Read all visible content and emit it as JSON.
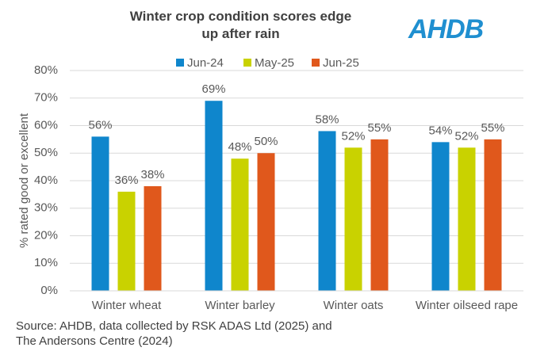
{
  "chart_data": {
    "type": "bar",
    "title": "Winter crop condition scores edge up after rain",
    "logo": "AHDB",
    "y_label": "% rated good or excellent",
    "source": "Source: AHDB, data collected by RSK ADAS Ltd (2025) and The Andersons Centre (2024)",
    "categories": [
      "Winter wheat",
      "Winter barley",
      "Winter oats",
      "Winter oilseed rape"
    ],
    "series": [
      {
        "name": "Jun-24",
        "color": "#0f86cc",
        "values": [
          56,
          69,
          58,
          54
        ],
        "value_labels": [
          "56%",
          "69%",
          "58%",
          "54%"
        ]
      },
      {
        "name": "May-25",
        "color": "#c9d200",
        "values": [
          36,
          48,
          52,
          52
        ],
        "value_labels": [
          "36%",
          "48%",
          "52%",
          "52%"
        ]
      },
      {
        "name": "Jun-25",
        "color": "#e0581c",
        "values": [
          38,
          50,
          55,
          55
        ],
        "value_labels": [
          "38%",
          "50%",
          "55%",
          "55%"
        ]
      }
    ],
    "ylim": [
      0,
      80
    ],
    "yticks": [
      {
        "value": 0,
        "label": "0%"
      },
      {
        "value": 10,
        "label": "10%"
      },
      {
        "value": 20,
        "label": "20%"
      },
      {
        "value": 30,
        "label": "30%"
      },
      {
        "value": 40,
        "label": "40%"
      },
      {
        "value": 50,
        "label": "50%"
      },
      {
        "value": 60,
        "label": "60%"
      },
      {
        "value": 70,
        "label": "70%"
      },
      {
        "value": 80,
        "label": "80%"
      }
    ],
    "grid": true,
    "legend": "top"
  }
}
